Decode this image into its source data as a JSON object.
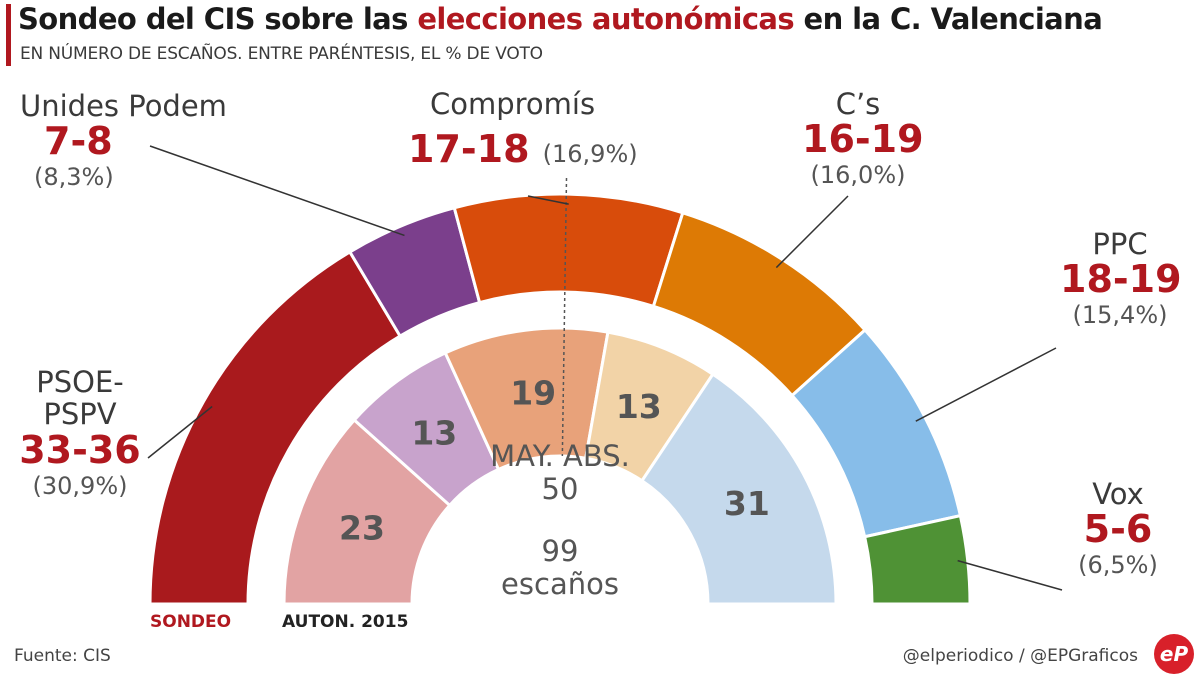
{
  "header": {
    "title_part1": "Sondeo del CIS sobre las ",
    "title_highlight": "elecciones autonómicas",
    "title_part2": " en la C. Valenciana",
    "subtitle": "EN NÚMERO DE ESCAÑOS.  ENTRE PARÉNTESIS, EL % DE VOTO"
  },
  "center": {
    "majority_label": "MAY. ABS.",
    "majority_value": "50",
    "total_value": "99",
    "total_label": "escaños"
  },
  "legend": {
    "outer": "SONDEO",
    "inner": "AUTON. 2015",
    "outer_color": "#b0181f",
    "inner_color": "#222222"
  },
  "footer": {
    "source": "Fuente: CIS",
    "credit": "@elperiodico / @EPGraficos",
    "logo": "eP"
  },
  "chart_data": [
    {
      "type": "pie",
      "name": "SONDEO",
      "categories": [
        "PSOE-PSPV",
        "Unides Podem",
        "Compromís",
        "C’s",
        "PPC",
        "Vox"
      ],
      "seat_ranges": [
        "33-36",
        "7-8",
        "17-18",
        "16-19",
        "18-19",
        "5-6"
      ],
      "vote_pct_labels": [
        "(30,9%)",
        "(8,3%)",
        "(16,9%)",
        "(16,0%)",
        "(15,4%)",
        "(6,5%)"
      ],
      "vote_pct": [
        30.9,
        8.3,
        16.9,
        16.0,
        15.4,
        6.5
      ],
      "colors": [
        "#a91a1d",
        "#7b3f8c",
        "#d84c0b",
        "#dd7a05",
        "#87bde9",
        "#4f9235"
      ]
    },
    {
      "type": "pie",
      "name": "AUTON. 2015",
      "categories": [
        "PSOE-PSPV",
        "Unides Podem",
        "Compromís",
        "C’s",
        "PPC"
      ],
      "values": [
        23,
        13,
        19,
        13,
        31
      ],
      "colors": [
        "#e2a3a3",
        "#c8a3cc",
        "#e8a27a",
        "#f2d3a7",
        "#c5d9ec"
      ],
      "total_seats": 99,
      "majority": 50
    }
  ]
}
